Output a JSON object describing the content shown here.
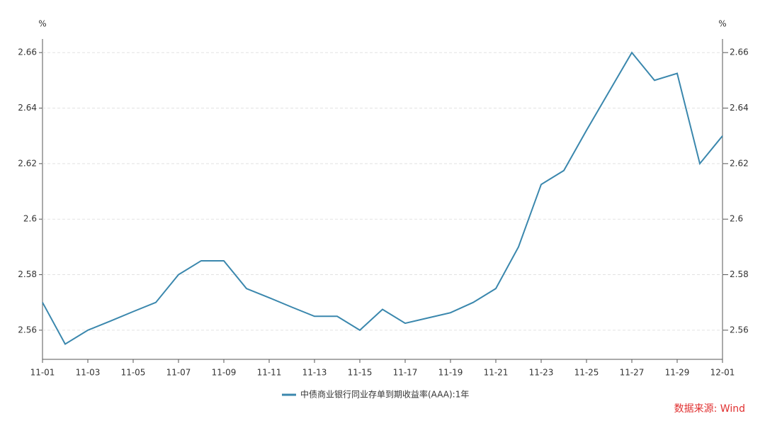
{
  "chart_data": {
    "type": "line",
    "y_unit": "%",
    "y2_unit": "%",
    "categories": [
      "11-01",
      null,
      "11-03",
      null,
      "11-05",
      null,
      "11-07",
      null,
      "11-09",
      null,
      "11-11",
      null,
      "11-13",
      null,
      "11-15",
      null,
      "11-17",
      null,
      "11-19",
      null,
      "11-21",
      null,
      "11-23",
      null,
      "11-25",
      null,
      "11-27",
      null,
      "11-29",
      null,
      "12-01"
    ],
    "series": [
      {
        "name": "中债商业银行同业存单到期收益率(AAA):1年",
        "color": "#3a87ad",
        "values": [
          2.57,
          2.555,
          2.56,
          2.5633,
          2.5667,
          2.57,
          2.58,
          2.585,
          2.585,
          2.575,
          2.5717,
          2.5683,
          2.565,
          2.565,
          2.56,
          2.5675,
          2.5625,
          2.5644,
          2.5663,
          2.57,
          2.575,
          2.59,
          2.6125,
          2.6175,
          2.632,
          2.646,
          2.66,
          2.65,
          2.6525,
          2.62,
          2.63
        ]
      }
    ],
    "ylim": [
      2.5495,
      2.6649
    ],
    "yticks": [
      2.56,
      2.58,
      2.6,
      2.62,
      2.64,
      2.66
    ],
    "y2lim": [
      2.5495,
      2.6649
    ],
    "y2ticks": [
      2.56,
      2.58,
      2.6,
      2.62,
      2.64,
      2.66
    ],
    "grid": true,
    "source": "数据来源: Wind",
    "source_color": "#e03030"
  }
}
